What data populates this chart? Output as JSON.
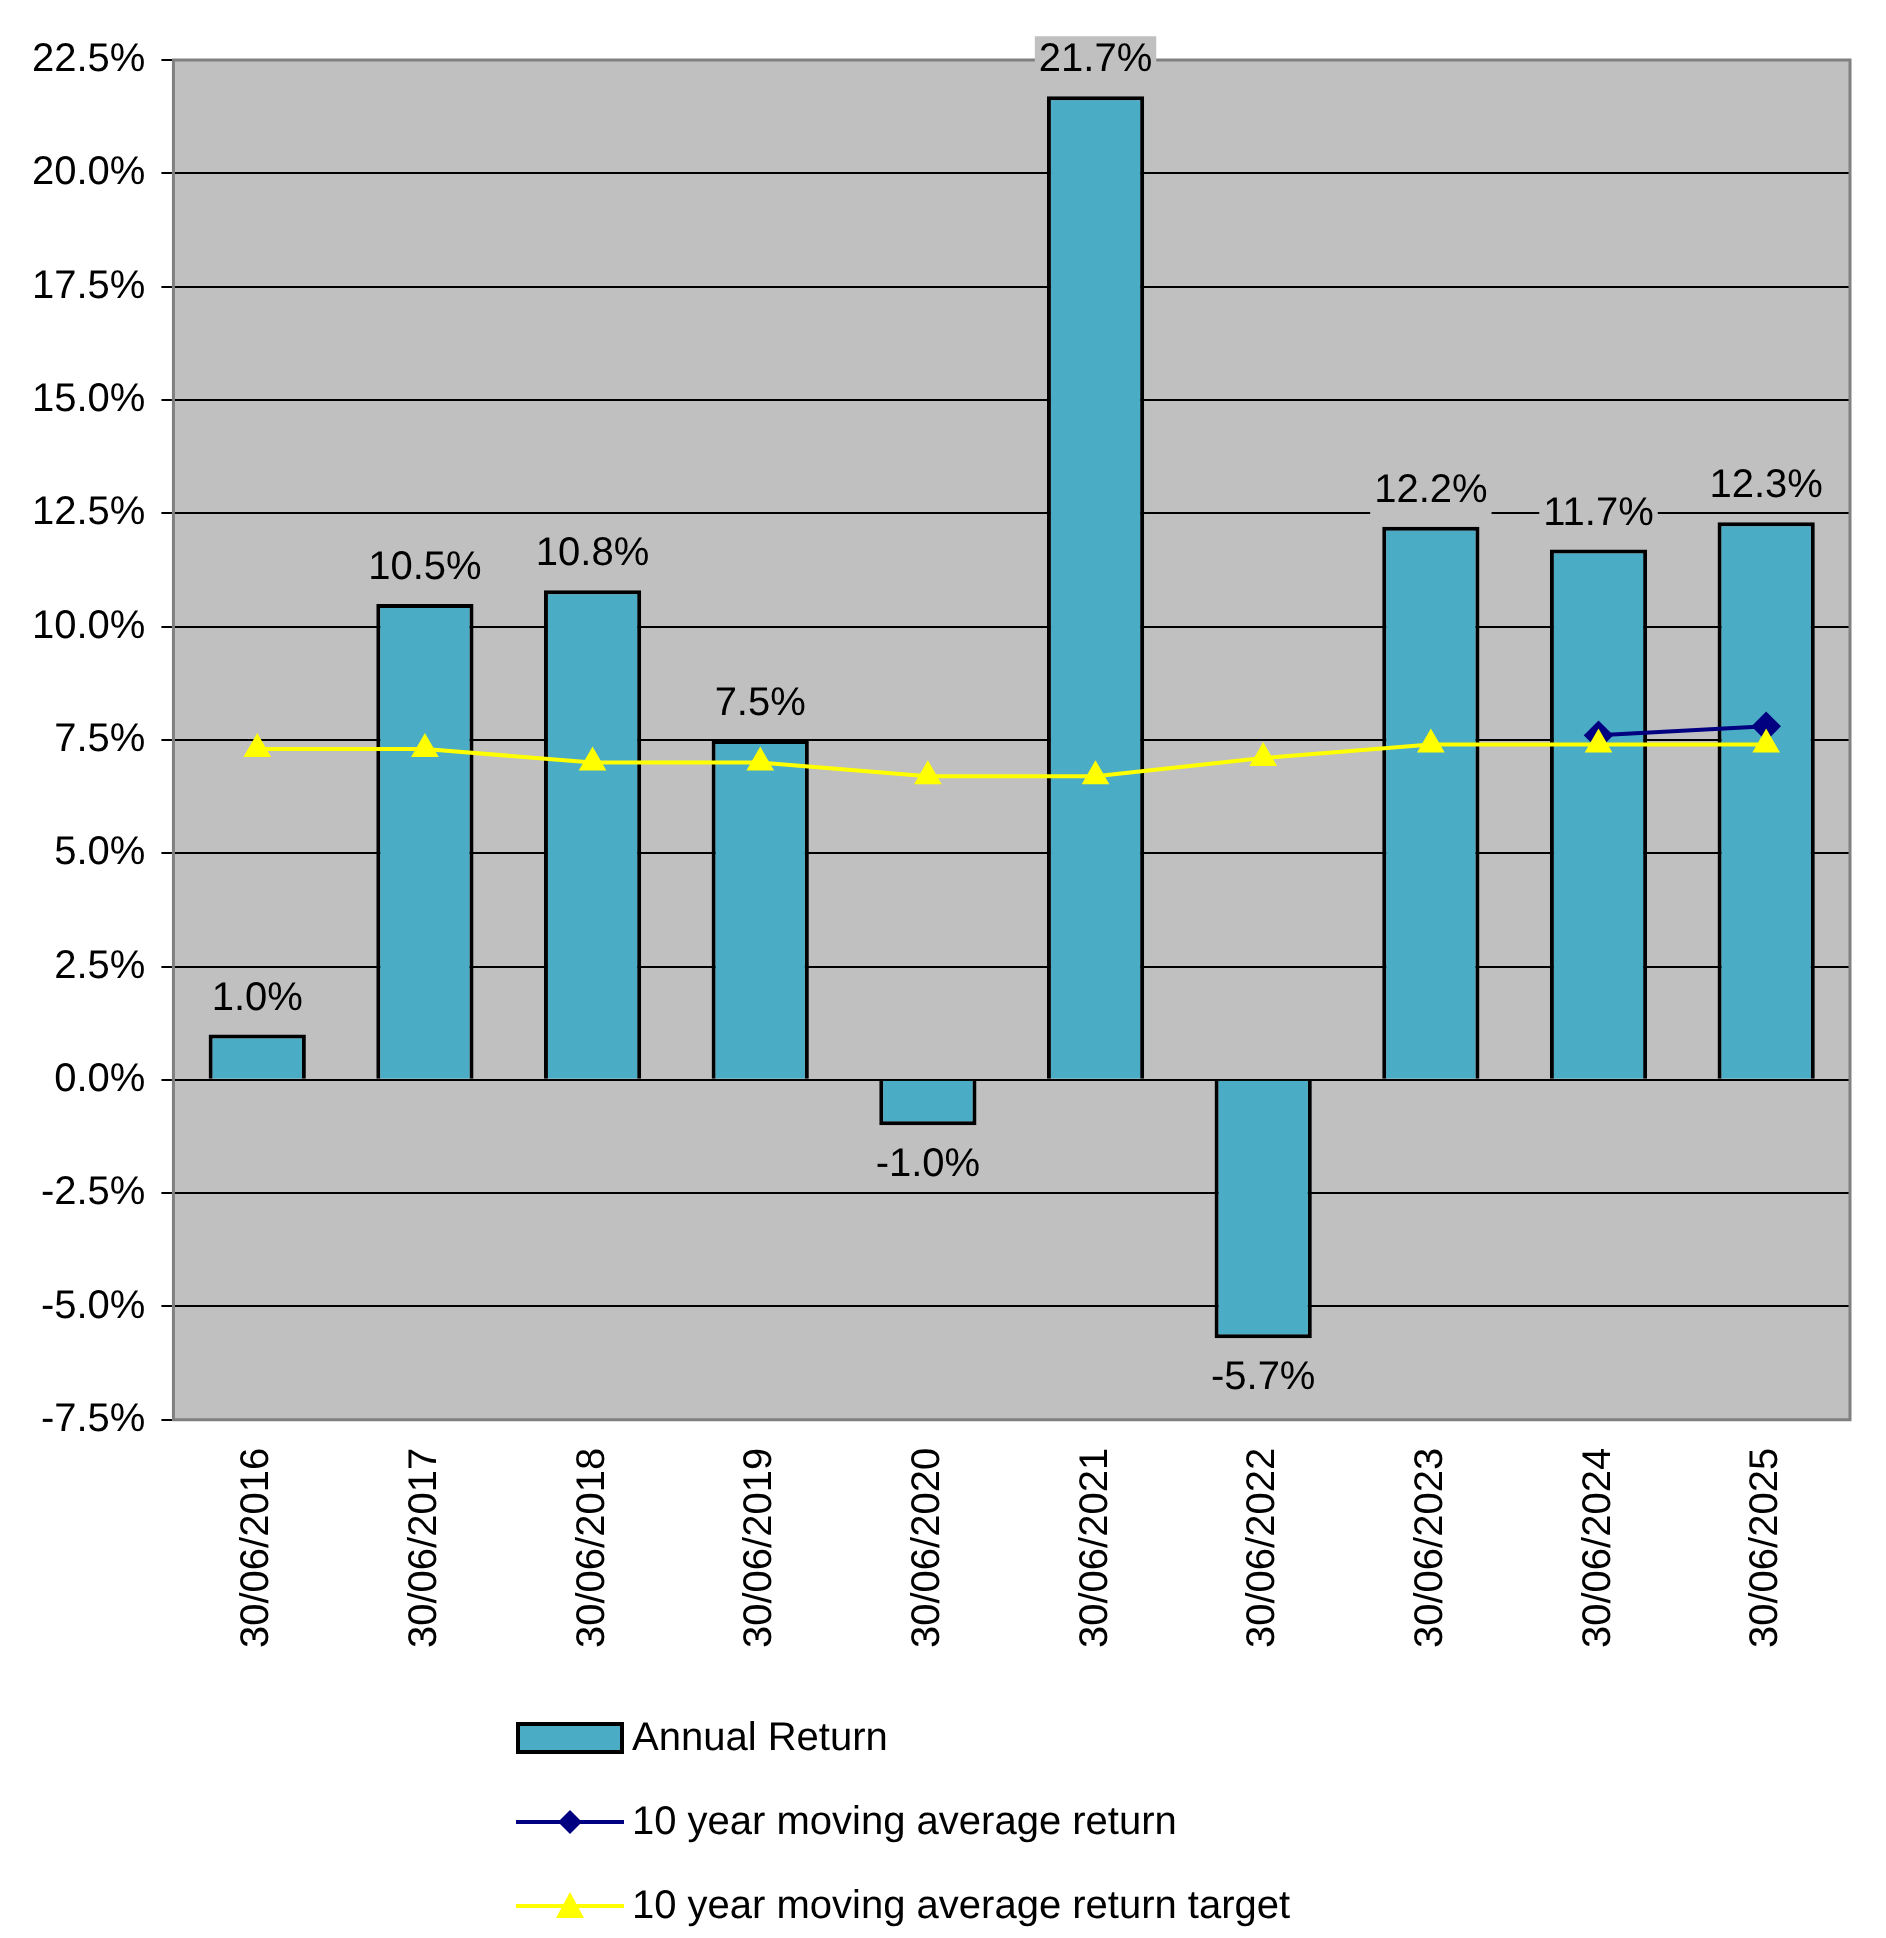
{
  "chart_data": {
    "type": "bar",
    "categories": [
      "30/06/2016",
      "30/06/2017",
      "30/06/2018",
      "30/06/2019",
      "30/06/2020",
      "30/06/2021",
      "30/06/2022",
      "30/06/2023",
      "30/06/2024",
      "30/06/2025"
    ],
    "series": [
      {
        "name": "Annual Return",
        "color": "#4bacc6",
        "values": [
          1.0,
          10.5,
          10.8,
          7.5,
          -1.0,
          21.7,
          -5.7,
          12.2,
          11.7,
          12.3
        ],
        "value_labels": [
          "1.0%",
          "10.5%",
          "10.8%",
          "7.5%",
          "-1.0%",
          "21.7%",
          "-5.7%",
          "12.2%",
          "11.7%",
          "12.3%"
        ]
      },
      {
        "name": "10 year moving average return",
        "type": "line",
        "color": "#000080",
        "marker": "diamond",
        "values": [
          null,
          null,
          null,
          null,
          null,
          null,
          null,
          null,
          7.6,
          7.8
        ]
      },
      {
        "name": "10 year moving average return target",
        "type": "line",
        "color": "#ffff00",
        "marker": "triangle",
        "values": [
          7.3,
          7.3,
          7.0,
          7.0,
          6.7,
          6.7,
          7.1,
          7.4,
          7.4,
          7.4
        ]
      }
    ],
    "ylim": [
      -7.5,
      22.5
    ],
    "yticks": [
      {
        "value": -7.5,
        "label": "-7.5%"
      },
      {
        "value": -5,
        "label": "-5.0%"
      },
      {
        "value": -2.5,
        "label": "-2.5%"
      },
      {
        "value": 0,
        "label": "0.0%"
      },
      {
        "value": 2.5,
        "label": "2.5%"
      },
      {
        "value": 5,
        "label": "5.0%"
      },
      {
        "value": 7.5,
        "label": "7.5%"
      },
      {
        "value": 10,
        "label": "10.0%"
      },
      {
        "value": 12.5,
        "label": "12.5%"
      },
      {
        "value": 15,
        "label": "15.0%"
      },
      {
        "value": 17.5,
        "label": "17.5%"
      },
      {
        "value": 20,
        "label": "20.0%"
      },
      {
        "value": 22.5,
        "label": "22.5%"
      }
    ],
    "grid": "y",
    "legend": "bottom"
  }
}
